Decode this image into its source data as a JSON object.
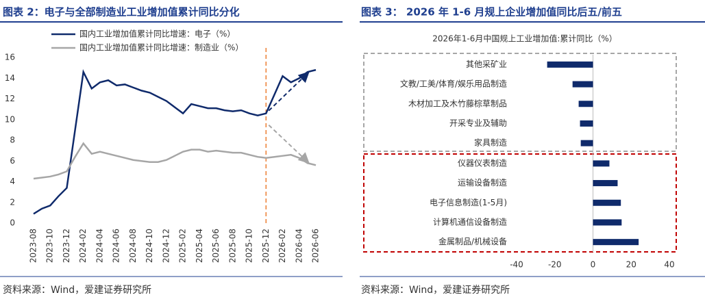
{
  "chart_data": [
    {
      "type": "line",
      "title": "图表 2：电子与全部制造业工业增加值累计同比分化",
      "source": "资料来源：Wind，爱建证券研究所",
      "categories": [
        "2023-08",
        null,
        "2023-10",
        null,
        "2023-12",
        null,
        "2024-02",
        null,
        "2024-04",
        null,
        "2024-06",
        null,
        "2024-08",
        null,
        "2024-10",
        null,
        "2024-12",
        null,
        "2025-02",
        null,
        "2025-04",
        null,
        "2025-06",
        null,
        "2025-08",
        null,
        "2025-10",
        null,
        "2025-12",
        null,
        "2026-02",
        null,
        "2026-04",
        null,
        "2026-06"
      ],
      "series": [
        {
          "name": "国内工业增加值累计同比增速：电子（%）",
          "color": "#0f2a6b",
          "values": [
            0.9,
            1.4,
            1.7,
            2.6,
            3.4,
            9.0,
            14.6,
            13.0,
            13.6,
            13.8,
            13.3,
            13.4,
            13.1,
            12.8,
            12.6,
            12.2,
            11.8,
            11.2,
            10.6,
            11.5,
            11.3,
            11.1,
            11.1,
            10.9,
            10.8,
            10.9,
            10.6,
            10.4,
            10.6,
            12.4,
            14.2,
            13.6,
            14.0,
            14.6,
            14.8
          ]
        },
        {
          "name": "国内工业增加值累计同比增速：制造业（%）",
          "color": "#a6a6a6",
          "values": [
            4.3,
            4.4,
            4.5,
            4.7,
            5.0,
            6.4,
            7.7,
            6.7,
            6.9,
            6.7,
            6.5,
            6.3,
            6.1,
            6.0,
            5.9,
            5.9,
            6.1,
            6.5,
            6.9,
            7.1,
            7.1,
            6.9,
            7.0,
            6.9,
            6.8,
            6.8,
            6.6,
            6.4,
            6.3,
            6.4,
            6.5,
            6.6,
            6.3,
            5.8,
            5.6
          ]
        }
      ],
      "ylim": [
        0,
        16
      ],
      "yticks": [
        0,
        2,
        4,
        6,
        8,
        10,
        12,
        14,
        16
      ],
      "grid": false
    },
    {
      "type": "barh",
      "title": "图表 3：  2026 年 1-6 月规上企业增加值同比后五/前五",
      "subtitle": "2026年1-6月中国规上工业增加值:累计同比（%）",
      "source": "资料来源：Wind，爱建证券研究所",
      "categories": [
        "其他采矿业",
        "文教/工美/体育/娱乐用品制造",
        "木材加工及木竹藤棕草制品",
        "开采专业及辅助",
        "家具制造",
        "仪器仪表制造",
        "运输设备制造",
        "电子信息制造(1-5月)",
        "计算机通信设备制造",
        "金属制品/机械设备"
      ],
      "values": [
        -24,
        -10.7,
        -7.5,
        -6.8,
        -6.4,
        8.6,
        12.9,
        14.6,
        15,
        23.9
      ],
      "color": "#0f2a6b",
      "xlim": [
        -40,
        40
      ],
      "xticks": [
        -40,
        -20,
        0,
        20,
        40
      ],
      "grid": false
    }
  ]
}
